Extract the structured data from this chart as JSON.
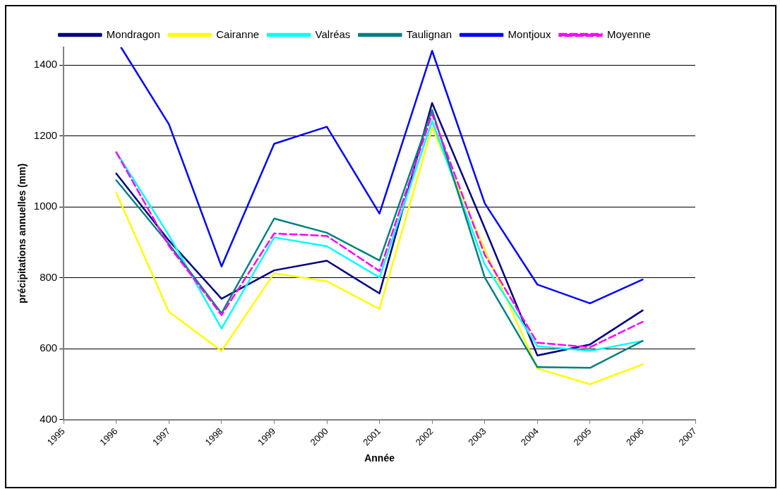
{
  "chart_data": {
    "type": "line",
    "xlabel": "Année",
    "ylabel": "précipitations annuelles (mm)",
    "x": [
      1996,
      1997,
      1998,
      1999,
      2000,
      2001,
      2002,
      2003,
      2004,
      2005,
      2006
    ],
    "xlim": [
      1995,
      2007
    ],
    "xticks": [
      1995,
      1996,
      1997,
      1998,
      1999,
      2000,
      2001,
      2002,
      2003,
      2004,
      2005,
      2006,
      2007
    ],
    "ylim": [
      400,
      1450
    ],
    "yticks": [
      400,
      600,
      800,
      1000,
      1200,
      1400
    ],
    "grid": "y",
    "legend": "top",
    "marker": "none",
    "series": [
      {
        "name": "Mondragon",
        "color": "#000080",
        "values": [
          1094,
          905,
          741,
          821,
          848,
          756,
          1293,
          940,
          581,
          612,
          708
        ]
      },
      {
        "name": "Cairanne",
        "color": "#ffff00",
        "values": [
          1039,
          704,
          594,
          813,
          790,
          712,
          1224,
          880,
          544,
          500,
          556
        ]
      },
      {
        "name": "Valréas",
        "color": "#00ffff",
        "values": [
          1154,
          920,
          657,
          914,
          889,
          801,
          1242,
          838,
          607,
          594,
          622
        ]
      },
      {
        "name": "Taulignan",
        "color": "#008080",
        "values": [
          1075,
          895,
          700,
          967,
          927,
          849,
          1273,
          801,
          548,
          546,
          622
        ]
      },
      {
        "name": "Montjoux",
        "color": "#0000ff",
        "x": [
          1996.09,
          1997,
          1998,
          1999,
          2000,
          2001,
          2002,
          2003,
          2004,
          2005,
          2006
        ],
        "values": [
          1450,
          1233,
          832,
          1178,
          1226,
          981,
          1440,
          1010,
          781,
          728,
          795
        ]
      },
      {
        "name": "Moyenne",
        "color": "#ff00ff",
        "line_style": "dashed",
        "values": [
          1154,
          890,
          695,
          925,
          918,
          819,
          1262,
          865,
          617,
          604,
          676
        ]
      }
    ]
  }
}
